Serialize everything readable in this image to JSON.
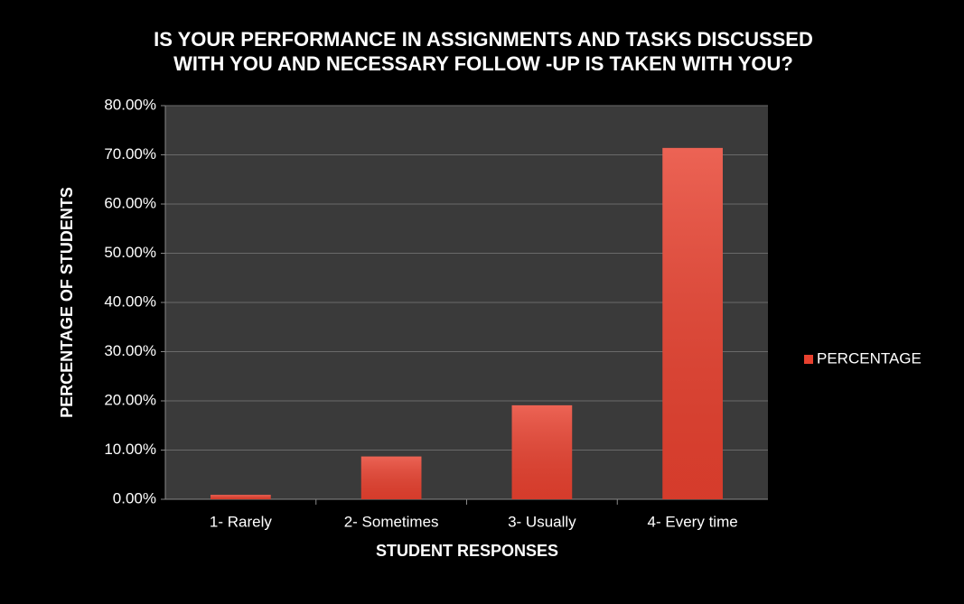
{
  "chart_data": {
    "type": "bar",
    "title": "IS YOUR PERFORMANCE IN ASSIGNMENTS AND TASKS DISCUSSED WITH YOU AND NECESSARY FOLLOW -UP IS TAKEN WITH YOU?",
    "x_label": "STUDENT RESPONSES",
    "y_label": "PERCENTAGE OF STUDENTS",
    "categories": [
      "1- Rarely",
      "2- Sometimes",
      "3- Usually",
      "4- Every time"
    ],
    "series": [
      {
        "name": "PERCENTAGE",
        "color": "#e8412f",
        "values": [
          0.9,
          8.7,
          19.1,
          71.4
        ]
      }
    ],
    "ylim": [
      0,
      80
    ],
    "yticks": [
      {
        "value": 0,
        "label": "0.00%"
      },
      {
        "value": 10,
        "label": "10.00%"
      },
      {
        "value": 20,
        "label": "20.00%"
      },
      {
        "value": 30,
        "label": "30.00%"
      },
      {
        "value": 40,
        "label": "40.00%"
      },
      {
        "value": 50,
        "label": "50.00%"
      },
      {
        "value": 60,
        "label": "60.00%"
      },
      {
        "value": 70,
        "label": "70.00%"
      },
      {
        "value": 80,
        "label": "80.00%"
      }
    ],
    "grid": true,
    "legend": "right"
  }
}
